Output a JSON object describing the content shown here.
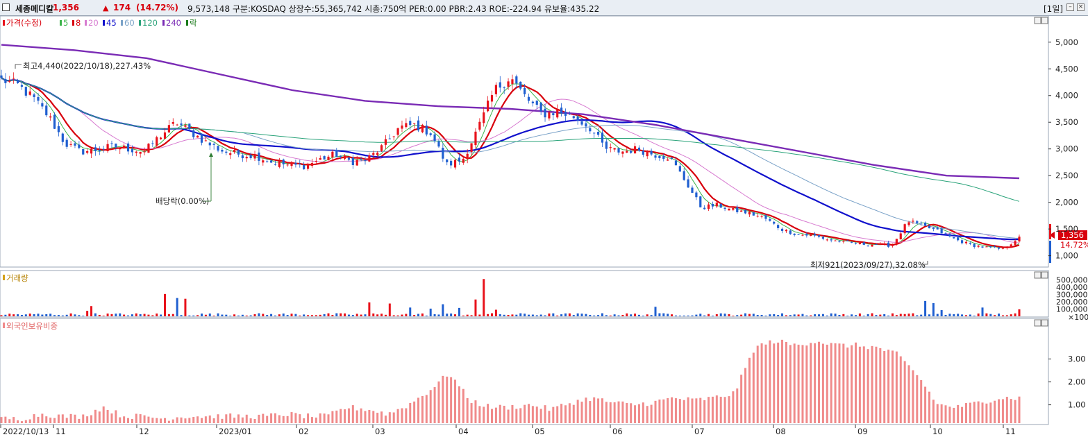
{
  "header": {
    "name": "세종메디칼",
    "price": "1,356",
    "arrow": "▲",
    "change": "174",
    "change_pct": "(14.72%)",
    "info": "9,573,148  구분:KOSDAQ 상장수:55,365,742 시총:750억  PER:0.00 PBR:2.43 ROE:-224.94 유보율:435.22",
    "period": "[1일]"
  },
  "legend": {
    "price_label": "가격(수정)",
    "ma": [
      "5",
      "8",
      "20",
      "45",
      "60",
      "120",
      "240"
    ],
    "ma_colors": [
      "#3cb44b",
      "#d8000c",
      "#d77ad0",
      "#1010cc",
      "#7aa2c8",
      "#2aa37a",
      "#7a2bb5"
    ],
    "ex_label": "락",
    "up_color": "#e8121b",
    "down_color": "#1f5fd0"
  },
  "annotations": {
    "high": "최고4,440(2022/10/18),227.43%",
    "dividend": "배당락(0.00%)",
    "low": "최저921(2023/09/27),32.08%",
    "last_price": "1,356",
    "last_pct": "14.72%"
  },
  "panels": {
    "volume_label": "거래량",
    "foreign_label": "외국인보유비중"
  },
  "x_axis_labels": [
    "2022/10/13",
    "11",
    "12",
    "2023/01",
    "02",
    "03",
    "04",
    "05",
    "06",
    "07",
    "08",
    "09",
    "10",
    "11"
  ],
  "y_price_ticks": [
    "5,000",
    "4,500",
    "4,000",
    "3,500",
    "3,000",
    "2,500",
    "2,000",
    "1,500",
    "1,000"
  ],
  "y_volume_ticks": [
    "500,000",
    "400,000",
    "300,000",
    "200,000",
    "100,000",
    "×100"
  ],
  "y_foreign_ticks": [
    "3.00",
    "2.00",
    "1.00"
  ],
  "chart_data": {
    "type": "candlestick",
    "period": "daily",
    "date_range": [
      "2022/10/13",
      "2023/11"
    ],
    "price_key_points": [
      {
        "date": "2022/10/13",
        "close": 4300
      },
      {
        "date": "2022/10/18",
        "high": 4440
      },
      {
        "date": "2022/11",
        "close": 2950
      },
      {
        "date": "2022/12",
        "close": 3300
      },
      {
        "date": "2023/01",
        "close": 2900
      },
      {
        "date": "2023/02",
        "close": 2650
      },
      {
        "date": "2023/03",
        "close": 3400
      },
      {
        "date": "2023/03/25",
        "close": 2700
      },
      {
        "date": "2023/04/20",
        "close": 4350
      },
      {
        "date": "2023/05",
        "close": 3600
      },
      {
        "date": "2023/06",
        "close": 2850
      },
      {
        "date": "2023/06/20",
        "close": 1900
      },
      {
        "date": "2023/07",
        "close": 1800
      },
      {
        "date": "2023/08",
        "close": 1400
      },
      {
        "date": "2023/09",
        "close": 1250
      },
      {
        "date": "2023/09/27",
        "low": 921
      },
      {
        "date": "2023/10/05",
        "close": 1650
      },
      {
        "date": "2023/10",
        "close": 1500
      },
      {
        "date": "2023/11",
        "close": 1150
      },
      {
        "date": "2023/11/last",
        "close": 1356
      }
    ],
    "moving_average_240": [
      4950,
      4850,
      4700,
      4400,
      4100,
      3900,
      3800,
      3750,
      3650,
      3450,
      3200,
      2950,
      2700,
      2500,
      2450
    ],
    "y_range": [
      800,
      5400
    ],
    "volume_ylim": [
      0,
      550000
    ],
    "foreign_ylim": [
      0.2,
      4.2
    ]
  }
}
